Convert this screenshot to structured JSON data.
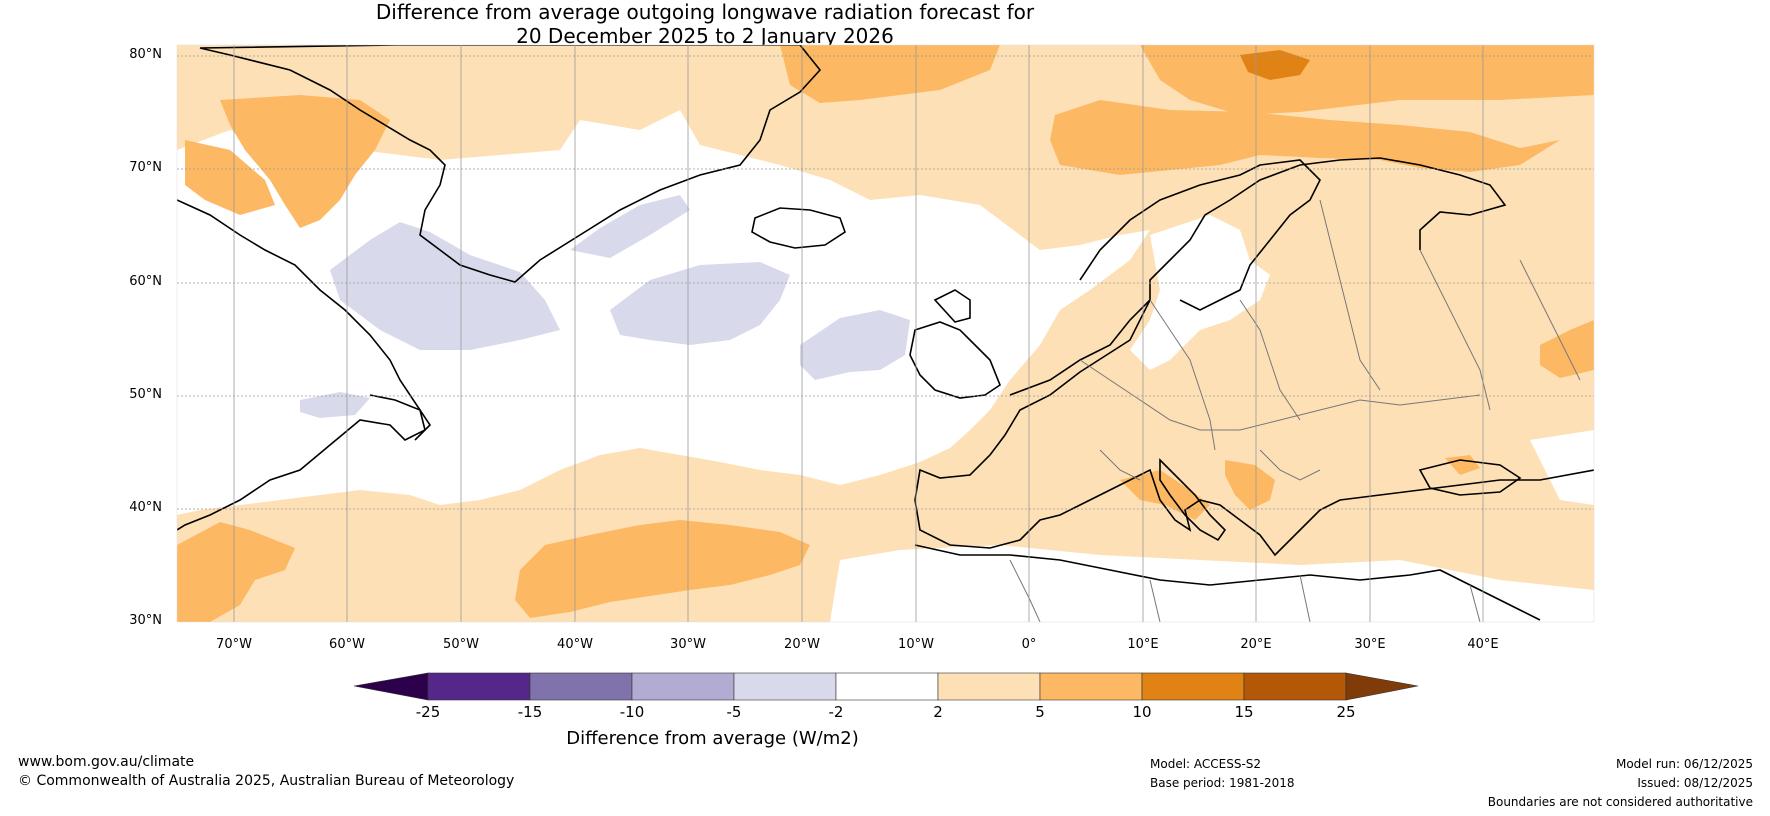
{
  "title": {
    "line1": "Difference from average outgoing longwave radiation forecast for",
    "line2": "20 December 2025 to 2 January 2026"
  },
  "lat_labels": [
    "80°N",
    "70°N",
    "60°N",
    "50°N",
    "40°N",
    "30°N"
  ],
  "lon_labels": [
    "70°W",
    "60°W",
    "50°W",
    "40°W",
    "30°W",
    "20°W",
    "10°W",
    "0°",
    "10°E",
    "20°E",
    "30°E",
    "40°E"
  ],
  "colorbar": {
    "ticks": [
      "-25",
      "-15",
      "-10",
      "-5",
      "-2",
      "2",
      "5",
      "10",
      "15",
      "25"
    ],
    "colors": [
      "#2d004b",
      "#542788",
      "#8073ac",
      "#b2abd2",
      "#d8daeb",
      "#ffffff",
      "#fee0b6",
      "#fdb863",
      "#e08214",
      "#b35806",
      "#7f3b08"
    ],
    "label": "Difference from average (W/m2)"
  },
  "footer": {
    "website": "www.bom.gov.au/climate",
    "copyright": "© Commonwealth of Australia 2025, Australian Bureau of Meteorology",
    "model": "Model: ACCESS-S2",
    "base_period": "Base period: 1981-2018",
    "model_run": "Model run: 06/12/2025",
    "issued": "Issued: 08/12/2025",
    "disclaimer": "Boundaries are not considered authoritative"
  }
}
